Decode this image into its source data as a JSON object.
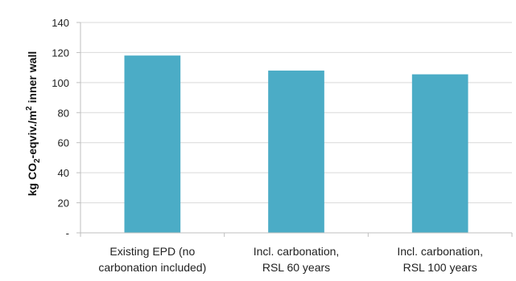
{
  "chart_data": {
    "type": "bar",
    "title": "",
    "xlabel": "",
    "ylabel": {
      "pre": "kg CO",
      "sub": "2",
      "mid": "-eqviv./m",
      "sup": "2",
      "post": " inner wall"
    },
    "categories": [
      [
        "Existing EPD (no",
        "carbonation included)"
      ],
      [
        "Incl. carbonation,",
        "RSL 60 years"
      ],
      [
        "Incl. carbonation,",
        "RSL 100 years"
      ]
    ],
    "values": [
      118,
      108,
      105.5
    ],
    "ylim": [
      0,
      140
    ],
    "yticks": [
      "-",
      "20",
      "40",
      "60",
      "80",
      "100",
      "120",
      "140"
    ],
    "grid": true,
    "legend": "none",
    "bar_color": "#4BACC6"
  }
}
